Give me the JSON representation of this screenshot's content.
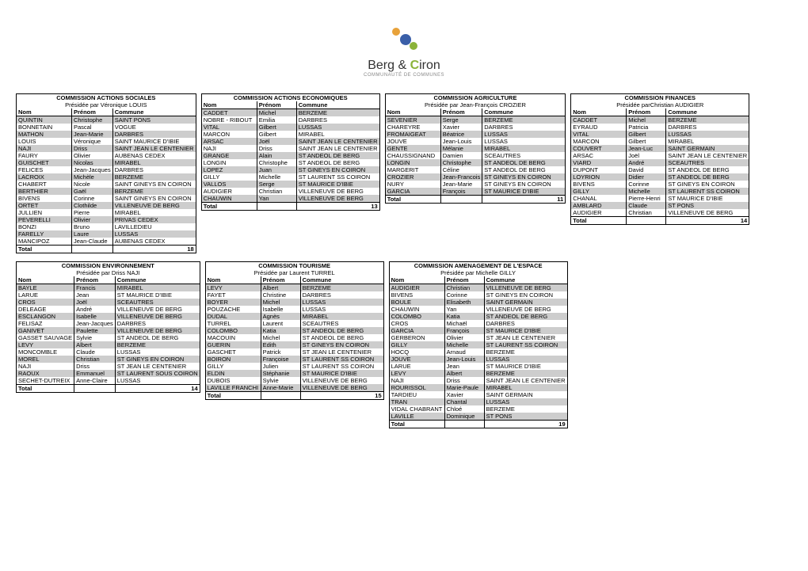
{
  "logo": {
    "brand_a": "Berg",
    "amp": "&",
    "brand_b": "C",
    "brand_b2": "iron",
    "sub": "COMMUNAUTÉ DE COMMUNES"
  },
  "headers": {
    "nom": "Nom",
    "prenom": "Prénom",
    "commune": "Commune",
    "total": "Total"
  },
  "commissions": {
    "sociales": {
      "title": "COMMISSION ACTIONS SOCIALES",
      "president": "Présidée par Véronique LOUIS",
      "rows": [
        [
          "QUINTIN",
          "Christophe",
          "SAINT PONS"
        ],
        [
          "BONNETAIN",
          "Pascal",
          "VOGUE"
        ],
        [
          "MATHON",
          "Jean-Marie",
          "DARBRES"
        ],
        [
          "LOUIS",
          "Véronique",
          "SAINT MAURICE D'IBIE"
        ],
        [
          "NAJI",
          "Driss",
          "SAINT JEAN LE CENTENIER"
        ],
        [
          "FAURY",
          "Olivier",
          "AUBENAS CEDEX"
        ],
        [
          "GUISCHET",
          "Nicolas",
          "MIRABEL"
        ],
        [
          "FELICES",
          "Jean-Jacques",
          "DARBRES"
        ],
        [
          "LACROIX",
          "Michèle",
          "BERZEME"
        ],
        [
          "CHABERT",
          "Nicole",
          "SAINT GINEYS EN COIRON"
        ],
        [
          "BERTHIER",
          "Gaël",
          "BERZEME"
        ],
        [
          "BIVENS",
          "Corinne",
          "SAINT GINEYS EN COIRON"
        ],
        [
          "ORTET",
          "Clothilde",
          "VILLENEUVE DE BERG"
        ],
        [
          "JULLIEN",
          "Pierre",
          "MIRABEL"
        ],
        [
          "PEVERELLI",
          "Olivier",
          "PRIVAS CEDEX"
        ],
        [
          "BONZI",
          "Bruno",
          "LAVILLEDIEU"
        ],
        [
          "FARELLY",
          "Laure",
          "LUSSAS"
        ],
        [
          "MANCIPOZ",
          "Jean-Claude",
          "AUBENAS CEDEX"
        ]
      ],
      "total": 18
    },
    "economiques": {
      "title": "COMMISSION ACTIONS ECONOMIQUES",
      "president": "",
      "rows": [
        [
          "CADDET",
          "Michel",
          "BERZEME"
        ],
        [
          "NOBRE - RIBOUT",
          "Emilia",
          "DARBRES"
        ],
        [
          "VITAL",
          "Gilbert",
          "LUSSAS"
        ],
        [
          "MARCON",
          "Gilbert",
          "MIRABEL"
        ],
        [
          "ARSAC",
          "Joël",
          "SAINT JEAN LE CENTENIER"
        ],
        [
          "NAJI",
          "Driss",
          "SAINT JEAN LE CENTENIER"
        ],
        [
          "GRANGE",
          "Alain",
          "ST ANDEOL DE BERG"
        ],
        [
          "LONGIN",
          "Christophe",
          "ST ANDEOL DE BERG"
        ],
        [
          "LOPEZ",
          "Juan",
          "ST GINEYS EN COIRON"
        ],
        [
          "GILLY",
          "Michelle",
          "ST LAURENT SS COIRON"
        ],
        [
          "VALLOS",
          "Serge",
          "ST MAURICE D'IBIE"
        ],
        [
          "AUDIGIER",
          "Christian",
          "VILLENEUVE DE BERG"
        ],
        [
          "CHAUWIN",
          "Yan",
          "VILLENEUVE DE BERG"
        ]
      ],
      "total": 13
    },
    "agriculture": {
      "title": "COMMISSION AGRICULTURE",
      "president": "Présidée par Jean-François CROZIER",
      "rows": [
        [
          "SEVENIER",
          "Serge",
          "BERZEME"
        ],
        [
          "CHAREYRE",
          "Xavier",
          "DARBRES"
        ],
        [
          "FROMAIGEAT",
          "Béatrice",
          "LUSSAS"
        ],
        [
          "JOUVE",
          "Jean-Louis",
          "LUSSAS"
        ],
        [
          "GENTE",
          "Mélanie",
          "MIRABEL"
        ],
        [
          "CHAUSSIGNAND",
          "Damien",
          "SCEAUTRES"
        ],
        [
          "LONGIN",
          "Christophe",
          "ST ANDEOL DE BERG"
        ],
        [
          "MARGERIT",
          "Céline",
          "ST ANDEOL DE BERG"
        ],
        [
          "CROZIER",
          "Jean-Francois",
          "ST GINEYS EN COIRON"
        ],
        [
          "NURY",
          "Jean-Marie",
          "ST GINEYS EN COIRON"
        ],
        [
          "GARCIA",
          "François",
          "ST MAURICE D'IBIE"
        ]
      ],
      "total": 11
    },
    "finances": {
      "title": "COMMISSION FINANCES",
      "president": "Présidée parChristian AUDIGIER",
      "rows": [
        [
          "CADDET",
          "Michel",
          "BERZEME"
        ],
        [
          "EYRAUD",
          "Patricia",
          "DARBRES"
        ],
        [
          "VITAL",
          "Gilbert",
          "LUSSAS"
        ],
        [
          "MARCON",
          "Gilbert",
          "MIRABEL"
        ],
        [
          "COUVERT",
          "Jean-Luc",
          "SAINT GERMAIN"
        ],
        [
          "ARSAC",
          "Joël",
          "SAINT JEAN LE CENTENIER"
        ],
        [
          "VIARD",
          "André",
          "SCEAUTRES"
        ],
        [
          "DUPONT",
          "David",
          "ST ANDEOL DE BERG"
        ],
        [
          "LOYRION",
          "Didier",
          "ST ANDEOL DE BERG"
        ],
        [
          "BIVENS",
          "Corinne",
          "ST GINEYS EN COIRON"
        ],
        [
          "GILLY",
          "Michelle",
          "ST LAURENT SS COIRON"
        ],
        [
          "CHANAL",
          "Pierre-Henri",
          "ST MAURICE D'IBIE"
        ],
        [
          "AMBLARD",
          "Claude",
          "ST PONS"
        ],
        [
          "AUDIGIER",
          "Christian",
          "VILLENEUVE DE BERG"
        ]
      ],
      "total": 14
    },
    "environnement": {
      "title": "COMMISSION ENVIRONNEMENT",
      "president": "Présidée par Driss NAJI",
      "rows": [
        [
          "BAYLE",
          "Francis",
          "MIRABEL"
        ],
        [
          "LARUE",
          "Jean",
          "ST MAURICE D'IBIE"
        ],
        [
          "CROS",
          "Joël",
          "SCEAUTRES"
        ],
        [
          "DELEAGE",
          "André",
          "VILLENEUVE DE BERG"
        ],
        [
          "ESCLANGON",
          "Isabelle",
          "VILLENEUVE DE BERG"
        ],
        [
          "FELISAZ",
          "Jean-Jacques",
          "DARBRES"
        ],
        [
          "GANIVET",
          "Paulette",
          "VILLENEUVE DE BERG"
        ],
        [
          "GASSET SAUVAGE",
          "Sylvie",
          "ST ANDEOL DE BERG"
        ],
        [
          "LEVY",
          "Albert",
          "BERZEME"
        ],
        [
          "MONCOMBLE",
          "Claude",
          "LUSSAS"
        ],
        [
          "MOREL",
          "Christian",
          "ST GINEYS EN COIRON"
        ],
        [
          "NAJI",
          "Driss",
          "ST JEAN LE CENTENIER"
        ],
        [
          "RAOUX",
          "Emmanuel",
          "ST LAURENT SOUS COIRON"
        ],
        [
          "SECHET-DUTREIX",
          "Anne-Claire",
          "LUSSAS"
        ]
      ],
      "total": 14
    },
    "tourisme": {
      "title": "COMMISSION TOURISME",
      "president": "Présidée par Laurent TURREL",
      "rows": [
        [
          "LEVY",
          "Albert",
          "BERZEME"
        ],
        [
          "FAYET",
          "Christine",
          "DARBRES"
        ],
        [
          "BOYER",
          "Michel",
          "LUSSAS"
        ],
        [
          "POUZACHE",
          "Isabelle",
          "LUSSAS"
        ],
        [
          "DUDAL",
          "Agnès",
          "MIRABEL"
        ],
        [
          "TURREL",
          "Laurent",
          "SCEAUTRES"
        ],
        [
          "COLOMBO",
          "Katia",
          "ST ANDEOL DE BERG"
        ],
        [
          "MACOUIN",
          "Michel",
          "ST ANDEOL DE BERG"
        ],
        [
          "GUERIN",
          "Edith",
          "ST GINEYS EN COIRON"
        ],
        [
          "GASCHET",
          "Patrick",
          "ST JEAN LE CENTENIER"
        ],
        [
          "BOIRON",
          "Françoise",
          "ST LAURENT SS COIRON"
        ],
        [
          "GILLY",
          "Julien",
          "ST LAURENT SS COIRON"
        ],
        [
          "ELDIN",
          "Stéphanie",
          "ST MAURICE D'IBIE"
        ],
        [
          "DUBOIS",
          "Sylvie",
          "VILLENEUVE DE BERG"
        ],
        [
          "LAVILLE FRANCHI",
          "Anne-Marie",
          "VILLENEUVE DE BERG"
        ]
      ],
      "total": 15
    },
    "amenagement": {
      "title": "COMMISSION AMENAGEMENT DE L'ESPACE",
      "president": "Présidée par Michelle GILLY",
      "rows": [
        [
          "AUDIGIER",
          "Christian",
          "VILLENEUVE DE BERG"
        ],
        [
          "BIVENS",
          "Corinne",
          "ST GINEYS EN COIRON"
        ],
        [
          "BOULE",
          "Elisabeth",
          "SAINT GERMAIN"
        ],
        [
          "CHAUWIN",
          "Yan",
          "VILLENEUVE DE BERG"
        ],
        [
          "COLOMBO",
          "Katia",
          "ST ANDEOL DE BERG"
        ],
        [
          "CROS",
          "Michaël",
          "DARBRES"
        ],
        [
          "GARCIA",
          "François",
          "ST MAURICE D'IBIE"
        ],
        [
          "GERBERON",
          "Olivier",
          "ST JEAN LE CENTENIER"
        ],
        [
          "GILLY",
          "Michelle",
          "ST LAURENT SS COIRON"
        ],
        [
          "HOCQ",
          "Arnaud",
          "BERZEME"
        ],
        [
          "JOUVE",
          "Jean-Louis",
          "LUSSAS"
        ],
        [
          "LARUE",
          "Jean",
          "ST MAURICE D'IBIE"
        ],
        [
          "LEVY",
          "Albert",
          "BERZEME"
        ],
        [
          "NAJI",
          "Driss",
          "SAINT JEAN LE CENTENIER"
        ],
        [
          "ROURISSOL",
          "Marie-Paule",
          "MIRABEL"
        ],
        [
          "TARDIEU",
          "Xavier",
          "SAINT GERMAIN"
        ],
        [
          "TRAN",
          "Chantal",
          "LUSSAS"
        ],
        [
          "VIDAL CHABRANT",
          "Chloé",
          "BERZEME"
        ],
        [
          "LAVILLE",
          "Dominique",
          "ST PONS"
        ]
      ],
      "total": 19
    }
  }
}
